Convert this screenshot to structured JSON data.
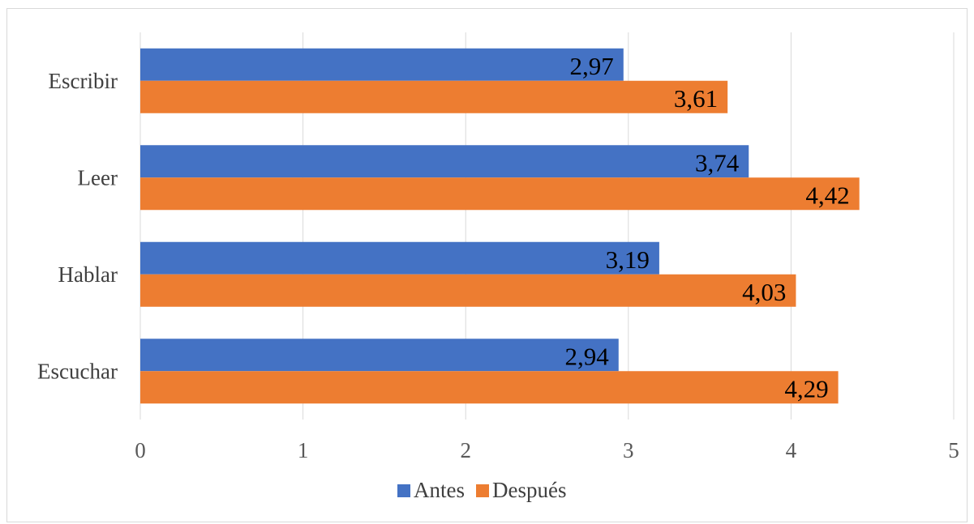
{
  "chart_data": {
    "type": "bar",
    "orientation": "horizontal",
    "categories": [
      "Escribir",
      "Leer",
      "Hablar",
      "Escuchar"
    ],
    "series": [
      {
        "name": "Antes",
        "values": [
          2.97,
          3.74,
          3.19,
          2.94
        ],
        "labels": [
          "2,97",
          "3,74",
          "3,19",
          "2,94"
        ],
        "color": "#4472c4"
      },
      {
        "name": "Después",
        "values": [
          3.61,
          4.42,
          4.03,
          4.29
        ],
        "labels": [
          "3,61",
          "4,42",
          "4,03",
          "4,29"
        ],
        "color": "#ed7d31"
      }
    ],
    "xlim": [
      0,
      5
    ],
    "xticks": [
      "0",
      "1",
      "2",
      "3",
      "4",
      "5"
    ],
    "grid": "vertical",
    "legend_position": "bottom",
    "gridline_color": "#d9d9d9"
  }
}
